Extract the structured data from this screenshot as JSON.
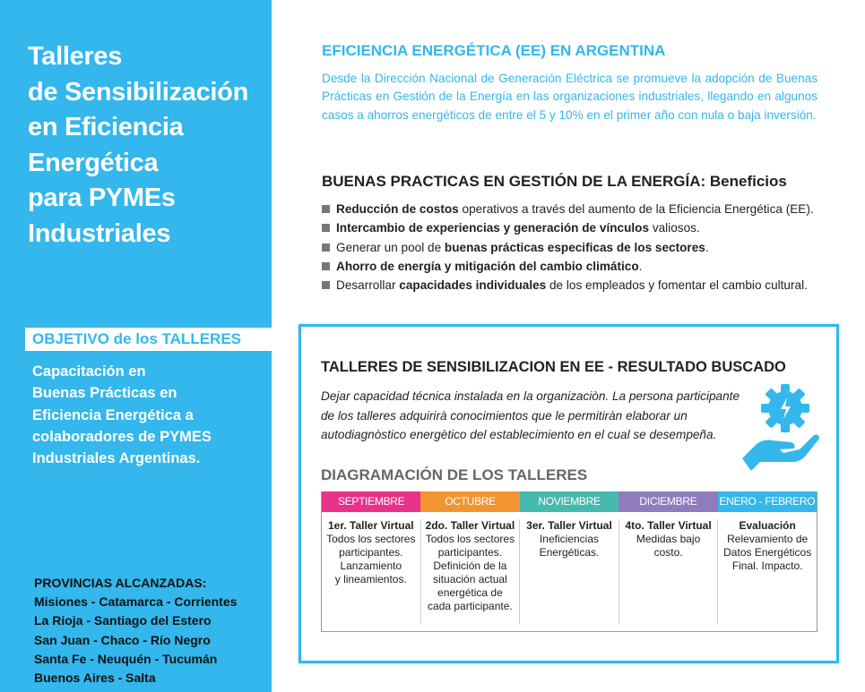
{
  "left": {
    "title_lines": [
      "Talleres",
      "de Sensibilización",
      "en Eficiencia",
      "Energética",
      "para PYMEs",
      "Industriales"
    ],
    "objetivo_heading": "OBJETIVO de los TALLERES",
    "objetivo_lines": [
      "Capacitación en",
      "Buenas Prácticas en",
      "Eficiencia Energética a",
      "colaboradores de PYMES",
      "Industriales Argentinas."
    ],
    "provincias_heading": "PROVINCIAS ALCANZADAS:",
    "provincias_lines": [
      "Misiones - Catamarca - Corrientes",
      "La Rioja - Santiago del Estero",
      "San Juan - Chaco - Río Negro",
      "Santa Fe - Neuquén - Tucumán",
      "Buenos Aires - Salta"
    ]
  },
  "ee": {
    "title": "EFICIENCIA ENERGÉTICA (EE) EN ARGENTINA",
    "text": "Desde la Dirección Nacional de Generación Eléctrica se promueve la adopción de Buenas Prácticas en Gestión de la Energía en las organizaciones industriales, llegando en algunos casos a ahorros energéticos de entre el 5 y 10% en el primer año con nula o baja inversión."
  },
  "buenas_practicas": {
    "title": "BUENAS PRACTICAS EN GESTIÓN DE LA ENERGÍA: Beneficios",
    "items": [
      {
        "pre": "",
        "bold": "Reducción de costos",
        "post": " operativos a través del aumento de la Eficiencia Energética (EE)."
      },
      {
        "pre": "",
        "bold": "Intercambio de experiencias y generación de vínculos",
        "post": " valiosos."
      },
      {
        "pre": "Generar un pool de ",
        "bold": "buenas prácticas especificas de los sectores",
        "post": "."
      },
      {
        "pre": "",
        "bold": "Ahorro de energía y mitigación del cambio climático",
        "post": "."
      },
      {
        "pre": "Desarrollar ",
        "bold": "capacidades individuales",
        "post": " de los empleados y fomentar el cambio cultural."
      }
    ]
  },
  "resultado": {
    "title": "TALLERES DE SENSIBILIZACION EN EE - RESULTADO BUSCADO",
    "text": "Dejar capacidad técnica instalada en la organizaciòn. La persona participante de los talleres adquirirà conocimientos que le permitiràn elaborar un autodiagnòstico energètico del establecimiento en el cual se desempeña.",
    "icon": "hand-gear-energy-icon"
  },
  "diagramacion": {
    "title": "DIAGRAMACIÓN DE LOS TALLERES",
    "columns": [
      {
        "month": "SEPTIEMBRE",
        "color": "#e8318a",
        "heading": "1er. Taller Virtual",
        "lines": [
          "Todos los sectores",
          "participantes.",
          "Lanzamiento",
          "y lineamientos."
        ]
      },
      {
        "month": "OCTUBRE",
        "color": "#f39433",
        "heading": "2do. Taller Virtual",
        "lines": [
          "Todos los sectores",
          "participantes.",
          "Definición de la",
          "situación actual",
          "energética de",
          "cada participante."
        ]
      },
      {
        "month": "NOVIEMBRE",
        "color": "#46b9ae",
        "heading": "3er. Taller Virtual",
        "lines": [
          "Ineficiencias",
          "Energéticas."
        ]
      },
      {
        "month": "DICIEMBRE",
        "color": "#8f7cbd",
        "heading": "4to. Taller Virtual",
        "lines": [
          "Medidas bajo",
          "costo."
        ]
      },
      {
        "month": "ENERO - FEBRERO",
        "color": "#33b7ec",
        "heading": "Evaluación",
        "lines": [
          "Relevamiento de",
          "Datos Energéticos",
          "Final. Impacto."
        ]
      }
    ]
  },
  "colors": {
    "accent": "#33b7ec"
  }
}
